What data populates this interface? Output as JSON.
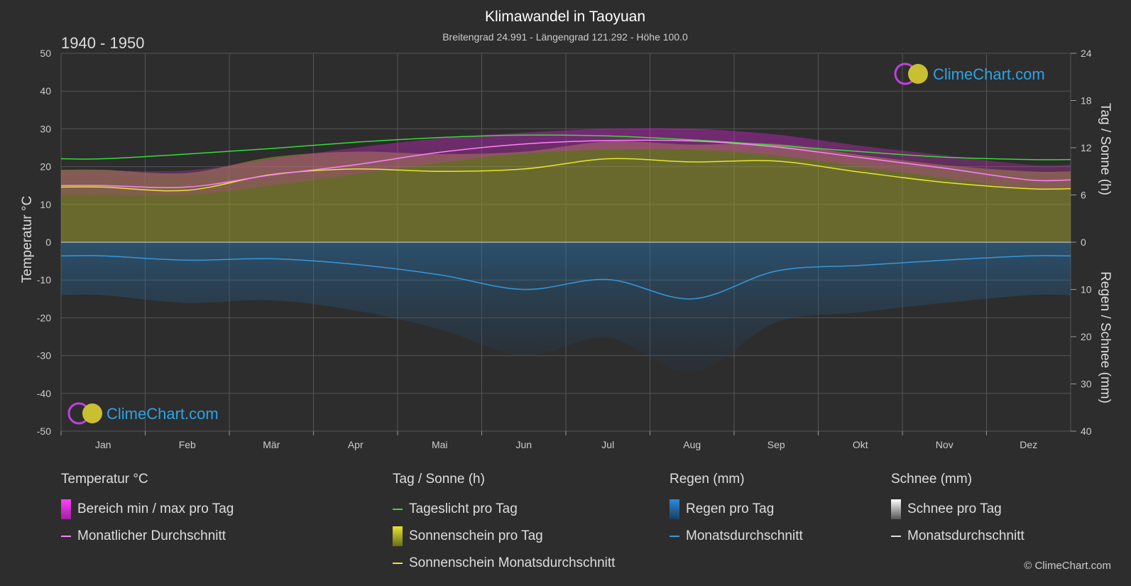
{
  "header": {
    "title": "Klimawandel in Taoyuan",
    "subtitle": "Breitengrad 24.991 - Längengrad 121.292 - Höhe 100.0",
    "period": "1940 - 1950"
  },
  "watermark": {
    "text": "ClimeChart.com"
  },
  "copyright": "© ClimeChart.com",
  "colors": {
    "background": "#2d2d2d",
    "temp_range": "#e020e0",
    "temp_avg": "#ff80ff",
    "daylight": "#33dd33",
    "sunshine_fill": "#9a9a30",
    "sunshine_avg": "#e6e62a",
    "rain_fill": "#1d5a8a",
    "rain_avg": "#3399dd",
    "snow": "#dddddd",
    "grid": "#555555",
    "brand": "#2aa4e8"
  },
  "chart_data": {
    "type": "line",
    "categories": [
      "Jan",
      "Feb",
      "Mär",
      "Apr",
      "Mai",
      "Jun",
      "Jul",
      "Aug",
      "Sep",
      "Okt",
      "Nov",
      "Dez"
    ],
    "axes": {
      "left": {
        "label": "Temperatur °C",
        "min": -50,
        "max": 50,
        "ticks": [
          50,
          40,
          30,
          20,
          10,
          0,
          -10,
          -20,
          -30,
          -40,
          -50
        ]
      },
      "right_top": {
        "label": "Tag / Sonne (h)",
        "min": 0,
        "max": 24,
        "ticks": [
          24,
          18,
          12,
          6,
          0
        ]
      },
      "right_bottom": {
        "label": "Regen / Schnee (mm)",
        "min": 0,
        "max": 40,
        "ticks": [
          0,
          10,
          20,
          30,
          40
        ]
      }
    },
    "grid": true,
    "series": [
      {
        "name": "Tageslicht pro Tag",
        "unit": "h",
        "values": [
          10.6,
          11.2,
          11.9,
          12.7,
          13.3,
          13.6,
          13.5,
          13.0,
          12.3,
          11.5,
          10.8,
          10.5
        ]
      },
      {
        "name": "Sonnenschein Monatsdurchschnitt",
        "unit": "h",
        "values": [
          7.0,
          6.6,
          8.6,
          9.3,
          9.0,
          9.3,
          10.6,
          10.2,
          10.3,
          8.9,
          7.6,
          6.8
        ]
      },
      {
        "name": "Monatlicher Durchschnitt",
        "unit": "°C",
        "values": [
          15.0,
          14.6,
          17.8,
          20.5,
          23.8,
          26.0,
          26.9,
          26.8,
          25.2,
          22.4,
          19.6,
          16.5
        ]
      },
      {
        "name": "Monatsdurchschnitt",
        "unit": "mm",
        "values": [
          2.9,
          3.8,
          3.5,
          4.7,
          6.9,
          10.0,
          7.9,
          12.0,
          6.1,
          4.9,
          3.8,
          2.9
        ]
      }
    ],
    "temp_range": {
      "name": "Bereich min / max pro Tag",
      "min": [
        12.5,
        12.5,
        15.0,
        18.0,
        21.0,
        23.5,
        24.5,
        24.5,
        23.0,
        20.0,
        17.0,
        14.0
      ],
      "max": [
        19.0,
        19.0,
        22.0,
        25.0,
        27.5,
        29.0,
        30.0,
        30.0,
        28.5,
        25.5,
        23.0,
        20.5
      ]
    }
  },
  "legend": {
    "groups": [
      {
        "title": "Temperatur °C",
        "items": [
          {
            "label": "Bereich min / max pro Tag",
            "kind": "box",
            "color": "temp_range"
          },
          {
            "label": "Monatlicher Durchschnitt",
            "kind": "line",
            "color": "temp_avg"
          }
        ]
      },
      {
        "title": "Tag / Sonne (h)",
        "items": [
          {
            "label": "Tageslicht pro Tag",
            "kind": "line",
            "color": "daylight"
          },
          {
            "label": "Sonnenschein pro Tag",
            "kind": "box",
            "color": "sunshine_fill"
          },
          {
            "label": "Sonnenschein Monatsdurchschnitt",
            "kind": "line",
            "color": "sunshine_avg"
          }
        ]
      },
      {
        "title": "Regen (mm)",
        "items": [
          {
            "label": "Regen pro Tag",
            "kind": "box",
            "color": "rain_fill"
          },
          {
            "label": "Monatsdurchschnitt",
            "kind": "line",
            "color": "rain_avg"
          }
        ]
      },
      {
        "title": "Schnee (mm)",
        "items": [
          {
            "label": "Schnee pro Tag",
            "kind": "box",
            "color": "snow"
          },
          {
            "label": "Monatsdurchschnitt",
            "kind": "line",
            "color": "snow"
          }
        ]
      }
    ]
  }
}
